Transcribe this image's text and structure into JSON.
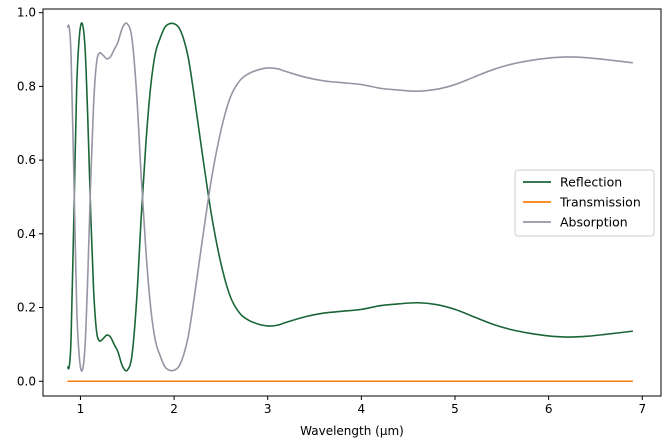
{
  "chart_data": {
    "type": "line",
    "title": "",
    "xlabel": "Wavelength (µm)",
    "ylabel": "",
    "xlim": [
      0.6,
      7.2
    ],
    "ylim": [
      -0.04,
      1.01
    ],
    "xticks": [
      1,
      2,
      3,
      4,
      5,
      6,
      7
    ],
    "yticks": [
      0.0,
      0.2,
      0.4,
      0.6,
      0.8,
      1.0
    ],
    "xtick_labels": [
      "1",
      "2",
      "3",
      "4",
      "5",
      "6",
      "7"
    ],
    "ytick_labels": [
      "0.0",
      "0.2",
      "0.4",
      "0.6",
      "0.8",
      "1.0"
    ],
    "grid": false,
    "legend_position": "center-right",
    "series": [
      {
        "name": "Reflection",
        "color": "#1a6636",
        "x": [
          0.86,
          0.88,
          0.9,
          0.93,
          0.96,
          0.99,
          1.02,
          1.05,
          1.08,
          1.11,
          1.14,
          1.17,
          1.2,
          1.24,
          1.28,
          1.32,
          1.36,
          1.4,
          1.45,
          1.5,
          1.55,
          1.6,
          1.65,
          1.7,
          1.75,
          1.8,
          1.85,
          1.9,
          1.95,
          2.0,
          2.05,
          2.1,
          2.15,
          2.2,
          2.3,
          2.4,
          2.5,
          2.6,
          2.7,
          2.8,
          2.9,
          3.0,
          3.1,
          3.2,
          3.4,
          3.6,
          3.8,
          4.0,
          4.2,
          4.4,
          4.6,
          4.8,
          5.0,
          5.2,
          5.4,
          5.6,
          5.8,
          6.0,
          6.2,
          6.4,
          6.6,
          6.9
        ],
        "y": [
          0.04,
          0.04,
          0.12,
          0.45,
          0.8,
          0.94,
          0.97,
          0.9,
          0.7,
          0.45,
          0.25,
          0.14,
          0.11,
          0.115,
          0.125,
          0.12,
          0.1,
          0.08,
          0.04,
          0.03,
          0.07,
          0.22,
          0.45,
          0.65,
          0.8,
          0.89,
          0.93,
          0.96,
          0.97,
          0.97,
          0.96,
          0.93,
          0.88,
          0.8,
          0.62,
          0.45,
          0.32,
          0.23,
          0.185,
          0.165,
          0.155,
          0.15,
          0.152,
          0.16,
          0.175,
          0.185,
          0.19,
          0.195,
          0.205,
          0.21,
          0.213,
          0.208,
          0.195,
          0.175,
          0.155,
          0.14,
          0.13,
          0.123,
          0.12,
          0.122,
          0.127,
          0.136
        ]
      },
      {
        "name": "Transmission",
        "color": "#ff7f0e",
        "x": [
          0.86,
          6.9
        ],
        "y": [
          0.0,
          0.0
        ]
      },
      {
        "name": "Absorption",
        "color": "#9795a3",
        "x": [
          0.86,
          0.88,
          0.9,
          0.93,
          0.96,
          0.99,
          1.02,
          1.05,
          1.08,
          1.11,
          1.14,
          1.17,
          1.2,
          1.24,
          1.28,
          1.32,
          1.36,
          1.4,
          1.45,
          1.5,
          1.55,
          1.6,
          1.65,
          1.7,
          1.75,
          1.8,
          1.85,
          1.9,
          1.95,
          2.0,
          2.05,
          2.1,
          2.15,
          2.2,
          2.3,
          2.4,
          2.5,
          2.6,
          2.7,
          2.8,
          2.9,
          3.0,
          3.1,
          3.2,
          3.4,
          3.6,
          3.8,
          4.0,
          4.2,
          4.4,
          4.6,
          4.8,
          5.0,
          5.2,
          5.4,
          5.6,
          5.8,
          6.0,
          6.2,
          6.4,
          6.6,
          6.9
        ],
        "y": [
          0.96,
          0.96,
          0.88,
          0.55,
          0.2,
          0.06,
          0.03,
          0.1,
          0.3,
          0.55,
          0.75,
          0.86,
          0.89,
          0.885,
          0.875,
          0.88,
          0.9,
          0.92,
          0.96,
          0.97,
          0.93,
          0.78,
          0.55,
          0.35,
          0.2,
          0.11,
          0.07,
          0.04,
          0.03,
          0.03,
          0.04,
          0.07,
          0.12,
          0.2,
          0.38,
          0.55,
          0.68,
          0.77,
          0.815,
          0.835,
          0.845,
          0.85,
          0.848,
          0.84,
          0.825,
          0.815,
          0.81,
          0.805,
          0.795,
          0.79,
          0.787,
          0.792,
          0.805,
          0.825,
          0.845,
          0.86,
          0.87,
          0.877,
          0.88,
          0.878,
          0.873,
          0.864
        ]
      }
    ]
  }
}
